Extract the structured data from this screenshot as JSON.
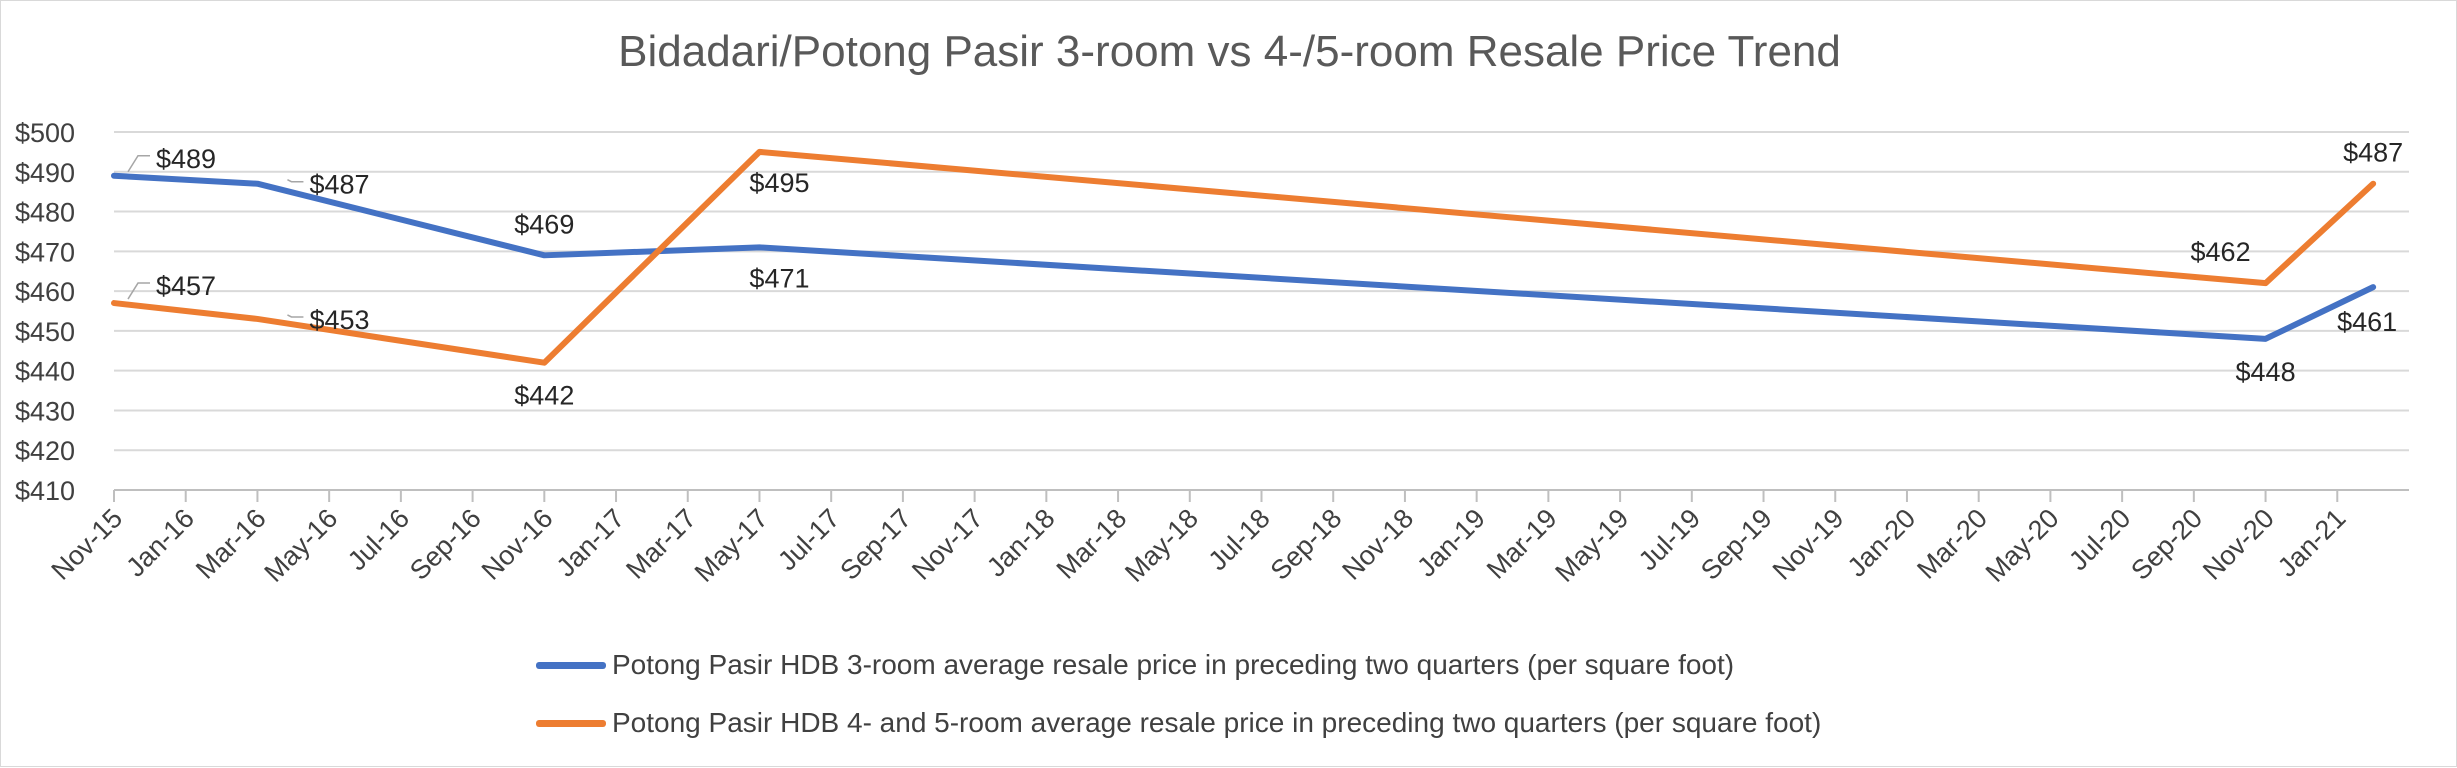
{
  "chart_data": {
    "type": "line",
    "title": "Bidadari/Potong Pasir 3-room vs 4-/5-room Resale Price Trend",
    "xlabel": "",
    "ylabel": "",
    "ylim": [
      410,
      500
    ],
    "y_ticks": [
      410,
      420,
      430,
      440,
      450,
      460,
      470,
      480,
      490,
      500
    ],
    "y_tick_labels": [
      "$410",
      "$420",
      "$430",
      "$440",
      "$450",
      "$460",
      "$470",
      "$480",
      "$490",
      "$500"
    ],
    "x_tick_labels": [
      "Nov-15",
      "Jan-16",
      "Mar-16",
      "May-16",
      "Jul-16",
      "Sep-16",
      "Nov-16",
      "Jan-17",
      "Mar-17",
      "May-17",
      "Jul-17",
      "Sep-17",
      "Nov-17",
      "Jan-18",
      "Mar-18",
      "May-18",
      "Jul-18",
      "Sep-18",
      "Nov-18",
      "Jan-19",
      "Mar-19",
      "May-19",
      "Jul-19",
      "Sep-19",
      "Nov-19",
      "Jan-20",
      "Mar-20",
      "May-20",
      "Jul-20",
      "Sep-20",
      "Nov-20",
      "Jan-21"
    ],
    "x_range_months": [
      0,
      64
    ],
    "grid": true,
    "legend_position": "bottom",
    "series": [
      {
        "name": "Potong Pasir HDB 3-room average resale price in preceding two quarters (per square foot)",
        "color": "#4472c4",
        "x_months": [
          0,
          4,
          12,
          18,
          60,
          63
        ],
        "values": [
          489,
          487,
          469,
          471,
          448,
          461
        ],
        "labels": [
          "$489",
          "$487",
          "$469",
          "$471",
          "$448",
          "$461"
        ]
      },
      {
        "name": "Potong Pasir HDB 4- and 5-room average resale price in preceding two quarters (per square foot)",
        "color": "#ed7d31",
        "x_months": [
          0,
          4,
          12,
          18,
          60,
          63
        ],
        "values": [
          457,
          453,
          442,
          495,
          462,
          487
        ],
        "labels": [
          "$457",
          "$453",
          "$442",
          "$495",
          "$462",
          "$487"
        ]
      }
    ]
  }
}
